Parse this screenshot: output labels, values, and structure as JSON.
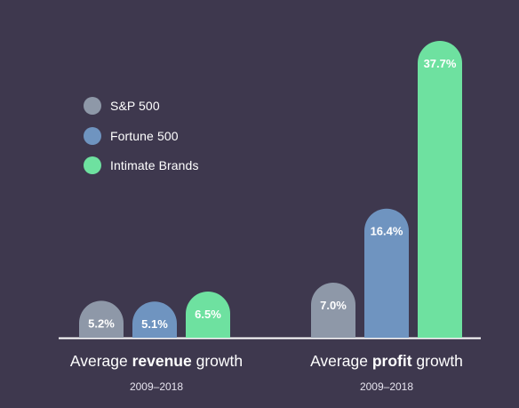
{
  "legend": [
    {
      "label": "S&P 500",
      "color": "#8e98a8"
    },
    {
      "label": "Fortune 500",
      "color": "#6f94c0"
    },
    {
      "label": "Intimate Brands",
      "color": "#6ee1a0"
    }
  ],
  "groups": [
    {
      "label_pre": "Average ",
      "label_bold": "revenue",
      "label_post": " growth",
      "period": "2009–2018"
    },
    {
      "label_pre": "Average ",
      "label_bold": "profit",
      "label_post": " growth",
      "period": "2009–2018"
    }
  ],
  "chart_data": {
    "type": "bar",
    "categories": [
      "Average revenue growth",
      "Average profit growth"
    ],
    "series": [
      {
        "name": "S&P 500",
        "color": "#8e98a8",
        "values": [
          5.2,
          7.0
        ],
        "labels": [
          "5.2%",
          "7.0%"
        ]
      },
      {
        "name": "Fortune 500",
        "color": "#6f94c0",
        "values": [
          5.1,
          16.4
        ],
        "labels": [
          "5.1%",
          "16.4%"
        ]
      },
      {
        "name": "Intimate Brands",
        "color": "#6ee1a0",
        "values": [
          6.5,
          37.7
        ],
        "labels": [
          "6.5%",
          "37.7%"
        ]
      }
    ],
    "scales": "each category drawn on its own independent scale",
    "grid": false,
    "legend_position": "top-left"
  }
}
